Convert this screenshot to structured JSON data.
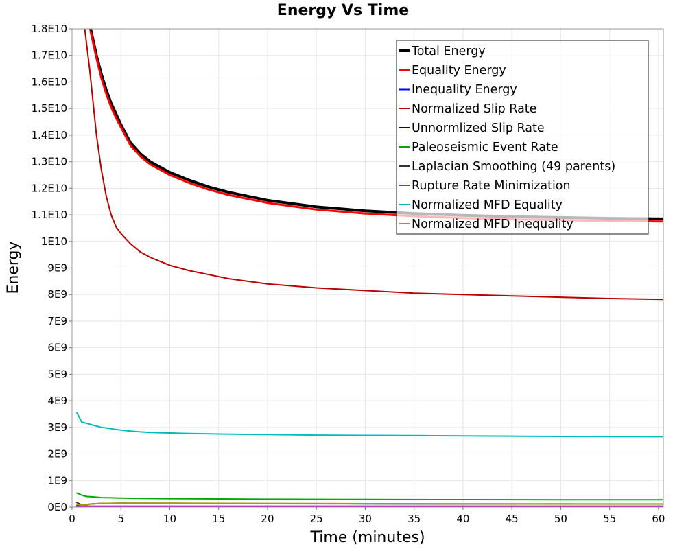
{
  "chart_data": {
    "type": "line",
    "title": "Energy Vs Time",
    "xlabel": "Time (minutes)",
    "ylabel": "Energy",
    "xlim": [
      0,
      60.5
    ],
    "ylim": [
      0,
      18000000000
    ],
    "grid": true,
    "legend_position": "top-right",
    "x_ticks": [
      {
        "value": 0,
        "label": "0"
      },
      {
        "value": 5,
        "label": "5"
      },
      {
        "value": 10,
        "label": "10"
      },
      {
        "value": 15,
        "label": "15"
      },
      {
        "value": 20,
        "label": "20"
      },
      {
        "value": 25,
        "label": "25"
      },
      {
        "value": 30,
        "label": "30"
      },
      {
        "value": 35,
        "label": "35"
      },
      {
        "value": 40,
        "label": "40"
      },
      {
        "value": 45,
        "label": "45"
      },
      {
        "value": 50,
        "label": "50"
      },
      {
        "value": 55,
        "label": "55"
      },
      {
        "value": 60,
        "label": "60"
      }
    ],
    "y_ticks": [
      {
        "value": 0,
        "label": "0E0"
      },
      {
        "value": 1000000000,
        "label": "1E9"
      },
      {
        "value": 2000000000,
        "label": "2E9"
      },
      {
        "value": 3000000000,
        "label": "3E9"
      },
      {
        "value": 4000000000,
        "label": "4E9"
      },
      {
        "value": 5000000000,
        "label": "5E9"
      },
      {
        "value": 6000000000,
        "label": "6E9"
      },
      {
        "value": 7000000000,
        "label": "7E9"
      },
      {
        "value": 8000000000,
        "label": "8E9"
      },
      {
        "value": 9000000000,
        "label": "9E9"
      },
      {
        "value": 10000000000,
        "label": "1E10"
      },
      {
        "value": 11000000000,
        "label": "1.1E10"
      },
      {
        "value": 12000000000,
        "label": "1.2E10"
      },
      {
        "value": 13000000000,
        "label": "1.3E10"
      },
      {
        "value": 14000000000,
        "label": "1.4E10"
      },
      {
        "value": 15000000000,
        "label": "1.5E10"
      },
      {
        "value": 16000000000,
        "label": "1.6E10"
      },
      {
        "value": 17000000000,
        "label": "1.7E10"
      },
      {
        "value": 18000000000,
        "label": "1.8E10"
      }
    ],
    "series": [
      {
        "name": "Total Energy",
        "color": "#000000",
        "width": 4,
        "x": [
          1.9,
          2.5,
          3,
          3.5,
          4,
          4.5,
          5,
          6,
          7,
          8,
          9,
          10,
          12,
          14,
          16,
          18,
          20,
          25,
          30,
          35,
          40,
          45,
          50,
          55,
          60.5
        ],
        "y": [
          18000000000,
          17000000000,
          16300000000,
          15700000000,
          15200000000,
          14800000000,
          14400000000,
          13700000000,
          13300000000,
          13000000000,
          12800000000,
          12600000000,
          12300000000,
          12050000000,
          11850000000,
          11700000000,
          11550000000,
          11300000000,
          11150000000,
          11050000000,
          10980000000,
          10930000000,
          10900000000,
          10870000000,
          10850000000
        ]
      },
      {
        "name": "Equality Energy",
        "color": "#ff0000",
        "width": 3,
        "x": [
          1.9,
          2.5,
          3,
          3.5,
          4,
          4.5,
          5,
          6,
          7,
          8,
          9,
          10,
          12,
          14,
          16,
          18,
          20,
          25,
          30,
          35,
          40,
          45,
          50,
          55,
          60.5
        ],
        "y": [
          17900000000,
          16900000000,
          16150000000,
          15550000000,
          15050000000,
          14650000000,
          14300000000,
          13600000000,
          13200000000,
          12900000000,
          12700000000,
          12500000000,
          12200000000,
          11950000000,
          11750000000,
          11600000000,
          11450000000,
          11200000000,
          11050000000,
          10950000000,
          10880000000,
          10830000000,
          10800000000,
          10770000000,
          10750000000
        ]
      },
      {
        "name": "Inequality Energy",
        "color": "#0000ff",
        "width": 3,
        "x": [
          0.5,
          60.5
        ],
        "y": [
          0,
          0
        ]
      },
      {
        "name": "Normalized Slip Rate",
        "color": "#bb0000",
        "width": 2,
        "x": [
          1.3,
          1.8,
          2.5,
          3,
          3.5,
          4,
          4.5,
          5,
          6,
          7,
          8,
          9,
          10,
          12,
          14,
          16,
          18,
          20,
          25,
          30,
          35,
          40,
          45,
          50,
          55,
          60.5
        ],
        "y": [
          18000000000,
          16500000000,
          14000000000,
          12700000000,
          11700000000,
          11000000000,
          10550000000,
          10300000000,
          9900000000,
          9600000000,
          9400000000,
          9250000000,
          9100000000,
          8900000000,
          8750000000,
          8600000000,
          8500000000,
          8400000000,
          8250000000,
          8150000000,
          8050000000,
          8000000000,
          7950000000,
          7900000000,
          7850000000,
          7820000000
        ]
      },
      {
        "name": "Unnormlized Slip Rate",
        "color": "#000088",
        "width": 2,
        "x": [
          0.5,
          1,
          2,
          5,
          10,
          20,
          30,
          40,
          50,
          60.5
        ],
        "y": [
          50000000,
          40000000,
          30000000,
          30000000,
          30000000,
          30000000,
          30000000,
          30000000,
          30000000,
          30000000
        ]
      },
      {
        "name": "Paleoseismic Event Rate",
        "color": "#00aa00",
        "width": 2,
        "x": [
          0.5,
          1,
          1.5,
          2,
          3,
          4,
          5,
          7,
          10,
          15,
          20,
          30,
          40,
          50,
          60.5
        ],
        "y": [
          530000000,
          450000000,
          400000000,
          390000000,
          360000000,
          350000000,
          340000000,
          330000000,
          320000000,
          310000000,
          300000000,
          290000000,
          285000000,
          280000000,
          280000000
        ]
      },
      {
        "name": "Laplacian Smoothing (49 parents)",
        "color": "#333333",
        "width": 2,
        "x": [
          0.5,
          1,
          1.5,
          2,
          3,
          5,
          10,
          20,
          30,
          40,
          50,
          60.5
        ],
        "y": [
          170000000,
          80000000,
          100000000,
          120000000,
          140000000,
          150000000,
          145000000,
          130000000,
          125000000,
          120000000,
          118000000,
          115000000
        ]
      },
      {
        "name": "Rupture Rate Minimization",
        "color": "#cc00cc",
        "width": 2,
        "x": [
          0.5,
          1,
          5,
          10,
          20,
          30,
          40,
          50,
          60.5
        ],
        "y": [
          20000000,
          15000000,
          15000000,
          15000000,
          15000000,
          15000000,
          15000000,
          15000000,
          15000000
        ]
      },
      {
        "name": "Normalized MFD Equality",
        "color": "#00bbbb",
        "width": 2,
        "x": [
          0.5,
          1,
          1.5,
          2,
          2.5,
          3,
          3.5,
          4,
          4.5,
          5,
          6,
          7,
          8,
          10,
          12,
          15,
          20,
          25,
          30,
          35,
          40,
          45,
          50,
          55,
          60.5
        ],
        "y": [
          3550000000,
          3200000000,
          3150000000,
          3100000000,
          3050000000,
          3000000000,
          2980000000,
          2950000000,
          2920000000,
          2900000000,
          2860000000,
          2830000000,
          2810000000,
          2790000000,
          2770000000,
          2750000000,
          2730000000,
          2710000000,
          2700000000,
          2690000000,
          2680000000,
          2670000000,
          2660000000,
          2655000000,
          2650000000
        ]
      },
      {
        "name": "Normalized MFD Inequality",
        "color": "#aa9900",
        "width": 2,
        "x": [
          0.5,
          1,
          2,
          3,
          5,
          10,
          20,
          30,
          40,
          50,
          60.5
        ],
        "y": [
          100000000,
          70000000,
          120000000,
          140000000,
          150000000,
          150000000,
          140000000,
          130000000,
          125000000,
          120000000,
          120000000
        ]
      }
    ]
  }
}
